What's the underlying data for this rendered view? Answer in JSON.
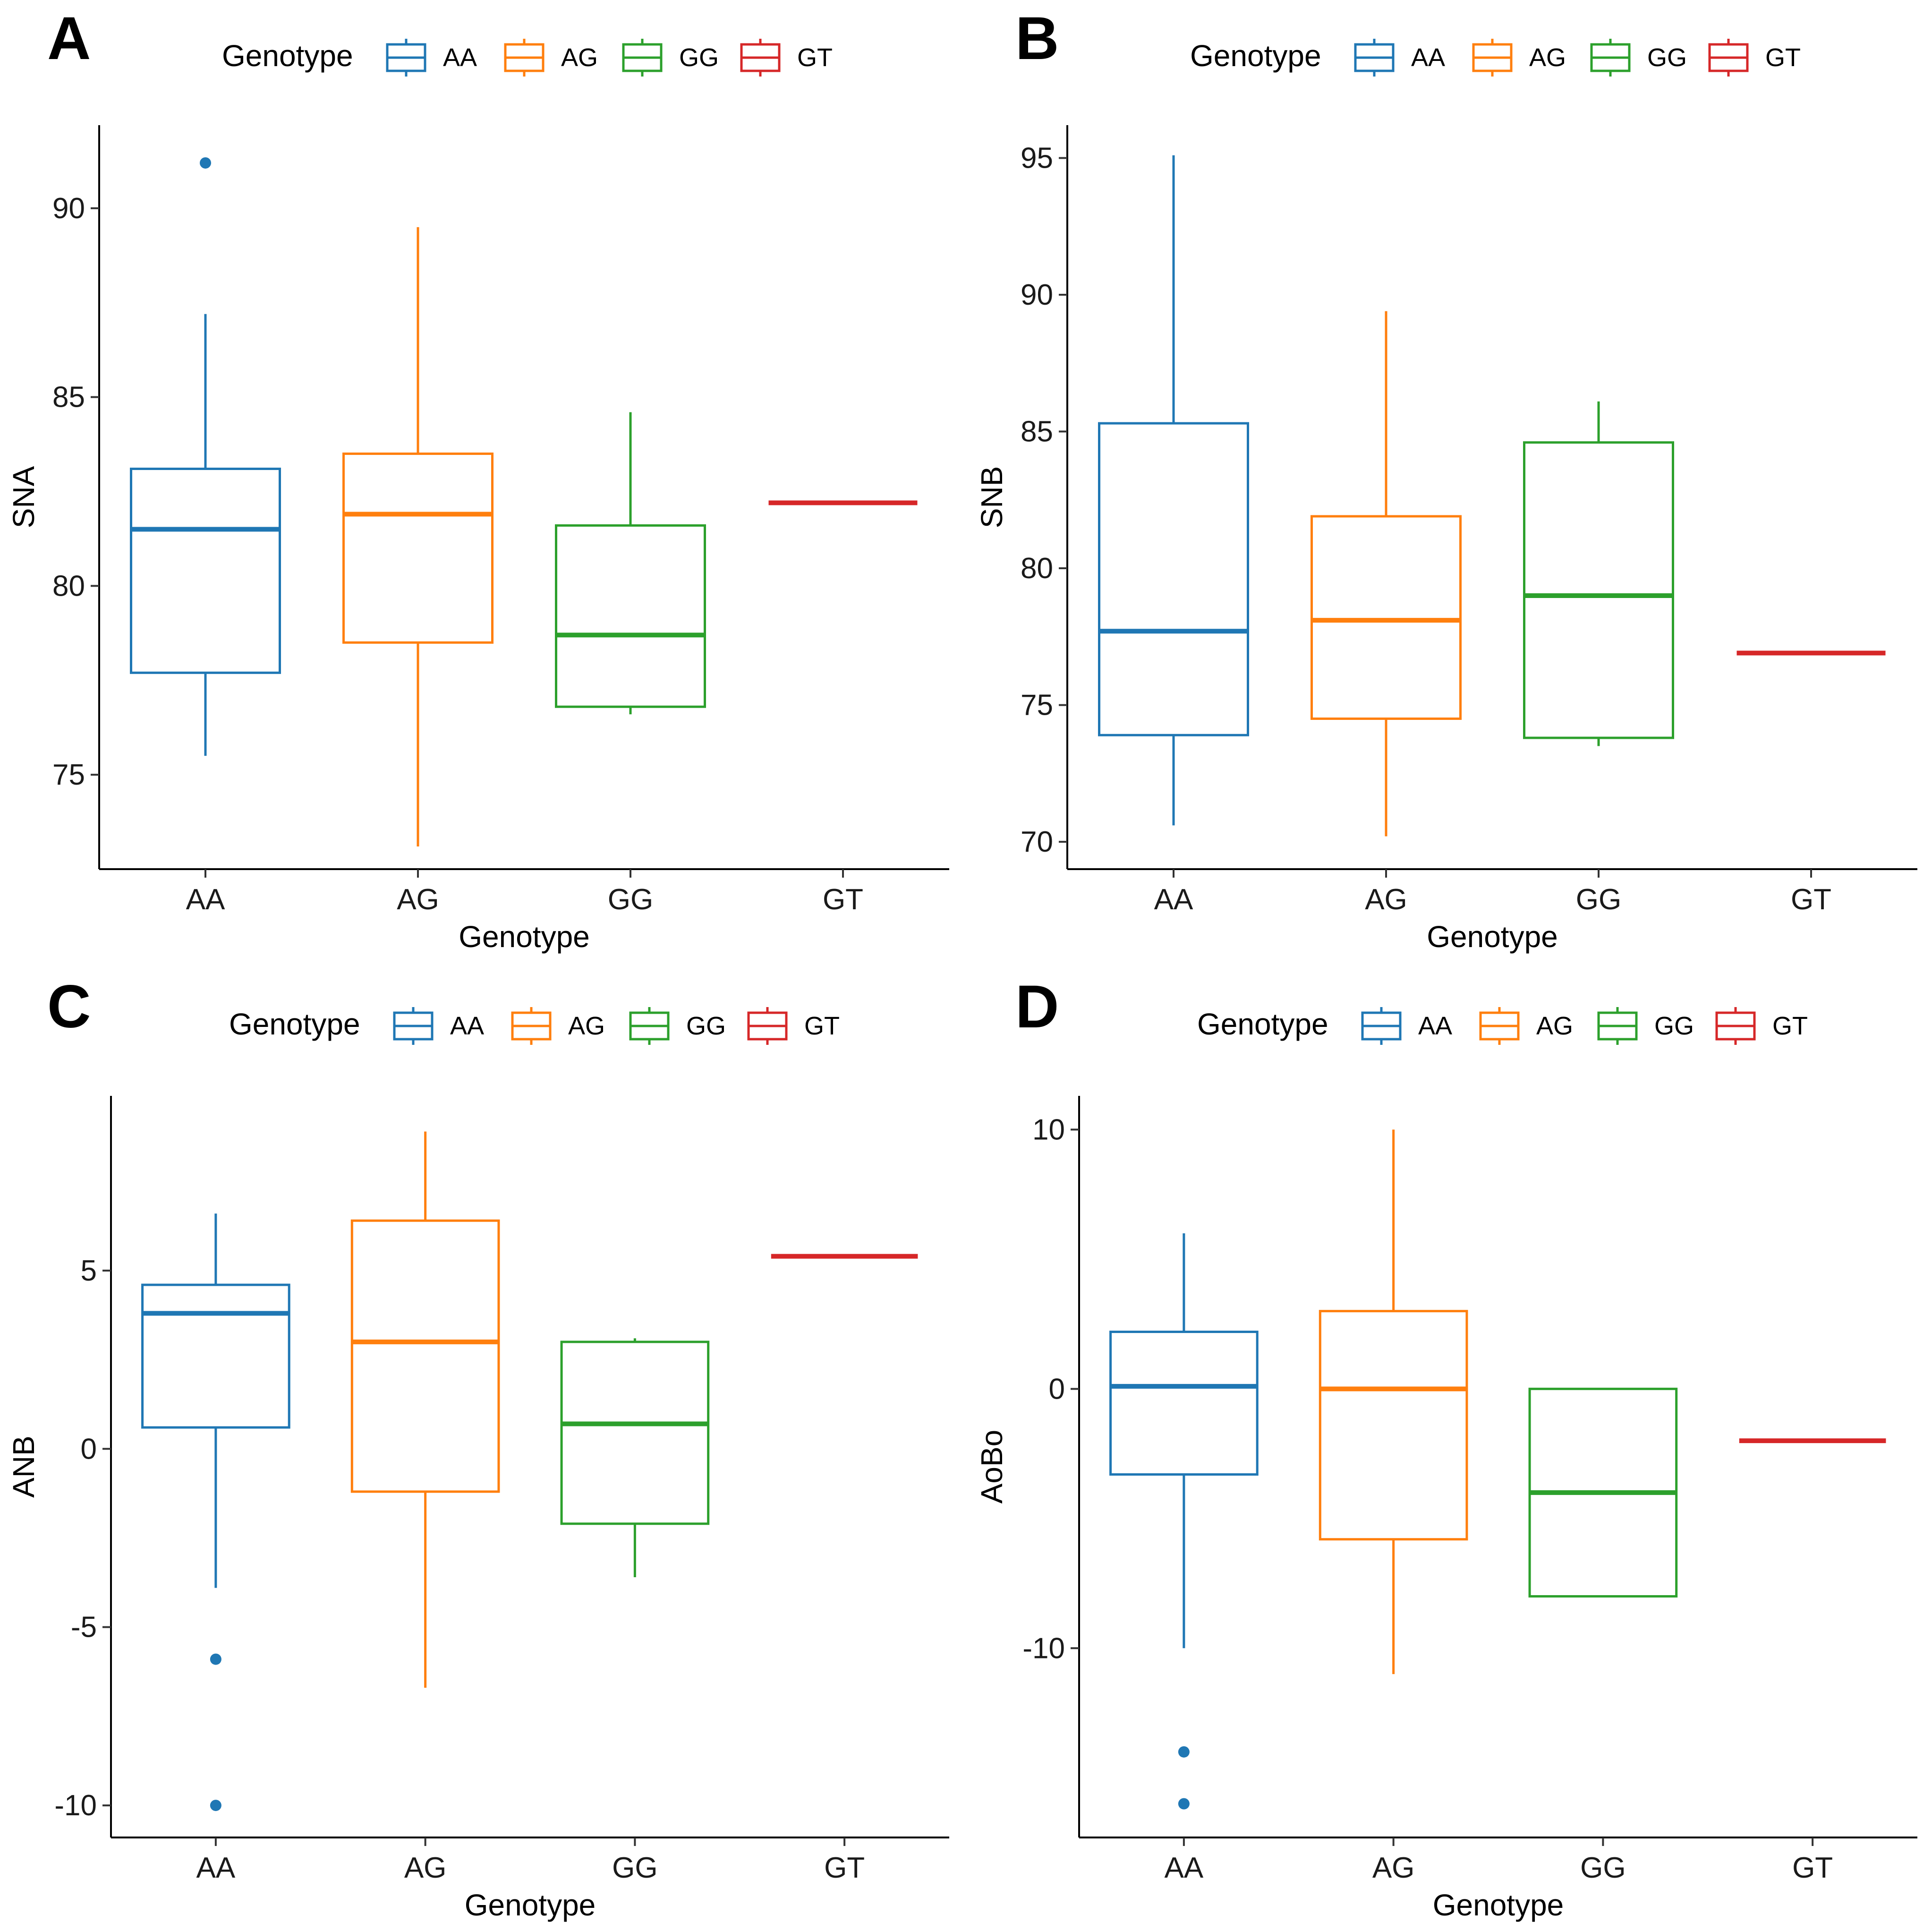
{
  "colors": {
    "AA": "#1f77b4",
    "AG": "#ff7f0e",
    "GG": "#2ca02c",
    "GT": "#d62728"
  },
  "chart_data": [
    {
      "type": "boxplot",
      "panel": "A",
      "xlabel": "Genotype",
      "ylabel": "SNA",
      "ylim": [
        72.5,
        92.2
      ],
      "yticks": [
        75,
        80,
        85,
        90
      ],
      "legend": {
        "title": "Genotype",
        "entries": [
          "AA",
          "AG",
          "GG",
          "GT"
        ],
        "position": "top"
      },
      "categories": [
        "AA",
        "AG",
        "GG",
        "GT"
      ],
      "boxes": [
        {
          "group": "AA",
          "lower_whisker": 75.5,
          "q1": 77.7,
          "median": 81.5,
          "q3": 83.1,
          "upper_whisker": 87.2,
          "outliers": [
            91.2
          ]
        },
        {
          "group": "AG",
          "lower_whisker": 73.1,
          "q1": 78.5,
          "median": 81.9,
          "q3": 83.5,
          "upper_whisker": 89.5,
          "outliers": []
        },
        {
          "group": "GG",
          "lower_whisker": 76.6,
          "q1": 76.8,
          "median": 78.7,
          "q3": 81.6,
          "upper_whisker": 84.6,
          "outliers": []
        },
        {
          "group": "GT",
          "lower_whisker": 82.2,
          "q1": 82.2,
          "median": 82.2,
          "q3": 82.2,
          "upper_whisker": 82.2,
          "outliers": []
        }
      ]
    },
    {
      "type": "boxplot",
      "panel": "B",
      "xlabel": "Genotype",
      "ylabel": "SNB",
      "ylim": [
        69.0,
        96.2
      ],
      "yticks": [
        70,
        75,
        80,
        85,
        90,
        95
      ],
      "legend": {
        "title": "Genotype",
        "entries": [
          "AA",
          "AG",
          "GG",
          "GT"
        ],
        "position": "top"
      },
      "categories": [
        "AA",
        "AG",
        "GG",
        "GT"
      ],
      "boxes": [
        {
          "group": "AA",
          "lower_whisker": 70.6,
          "q1": 73.9,
          "median": 77.7,
          "q3": 85.3,
          "upper_whisker": 95.1,
          "outliers": []
        },
        {
          "group": "AG",
          "lower_whisker": 70.2,
          "q1": 74.5,
          "median": 78.1,
          "q3": 81.9,
          "upper_whisker": 89.4,
          "outliers": []
        },
        {
          "group": "GG",
          "lower_whisker": 73.5,
          "q1": 73.8,
          "median": 79.0,
          "q3": 84.6,
          "upper_whisker": 86.1,
          "outliers": []
        },
        {
          "group": "GT",
          "lower_whisker": 76.9,
          "q1": 76.9,
          "median": 76.9,
          "q3": 76.9,
          "upper_whisker": 76.9,
          "outliers": []
        }
      ]
    },
    {
      "type": "boxplot",
      "panel": "C",
      "xlabel": "Genotype",
      "ylabel": "ANB",
      "ylim": [
        -10.9,
        9.9
      ],
      "yticks": [
        -10,
        -5,
        0,
        5
      ],
      "legend": {
        "title": "Genotype",
        "entries": [
          "AA",
          "AG",
          "GG",
          "GT"
        ],
        "position": "top"
      },
      "categories": [
        "AA",
        "AG",
        "GG",
        "GT"
      ],
      "boxes": [
        {
          "group": "AA",
          "lower_whisker": -3.9,
          "q1": 0.6,
          "median": 3.8,
          "q3": 4.6,
          "upper_whisker": 6.6,
          "outliers": [
            -5.9,
            -10.0
          ]
        },
        {
          "group": "AG",
          "lower_whisker": -6.7,
          "q1": -1.2,
          "median": 3.0,
          "q3": 6.4,
          "upper_whisker": 8.9,
          "outliers": []
        },
        {
          "group": "GG",
          "lower_whisker": -3.6,
          "q1": -2.1,
          "median": 0.7,
          "q3": 3.0,
          "upper_whisker": 3.1,
          "outliers": []
        },
        {
          "group": "GT",
          "lower_whisker": 5.4,
          "q1": 5.4,
          "median": 5.4,
          "q3": 5.4,
          "upper_whisker": 5.4,
          "outliers": []
        }
      ]
    },
    {
      "type": "boxplot",
      "panel": "D",
      "xlabel": "Genotype",
      "ylabel": "AoBo",
      "ylim": [
        -17.3,
        11.3
      ],
      "yticks": [
        -10,
        0,
        10
      ],
      "legend": {
        "title": "Genotype",
        "entries": [
          "AA",
          "AG",
          "GG",
          "GT"
        ],
        "position": "top"
      },
      "categories": [
        "AA",
        "AG",
        "GG",
        "GT"
      ],
      "boxes": [
        {
          "group": "AA",
          "lower_whisker": -10.0,
          "q1": -3.3,
          "median": 0.1,
          "q3": 2.2,
          "upper_whisker": 6.0,
          "outliers": [
            -14.0,
            -16.0
          ]
        },
        {
          "group": "AG",
          "lower_whisker": -11.0,
          "q1": -5.8,
          "median": 0.0,
          "q3": 3.0,
          "upper_whisker": 10.0,
          "outliers": []
        },
        {
          "group": "GG",
          "lower_whisker": -8.0,
          "q1": -8.0,
          "median": -4.0,
          "q3": 0.0,
          "upper_whisker": 0.0,
          "outliers": []
        },
        {
          "group": "GT",
          "lower_whisker": -2.0,
          "q1": -2.0,
          "median": -2.0,
          "q3": -2.0,
          "upper_whisker": -2.0,
          "outliers": []
        }
      ]
    }
  ]
}
